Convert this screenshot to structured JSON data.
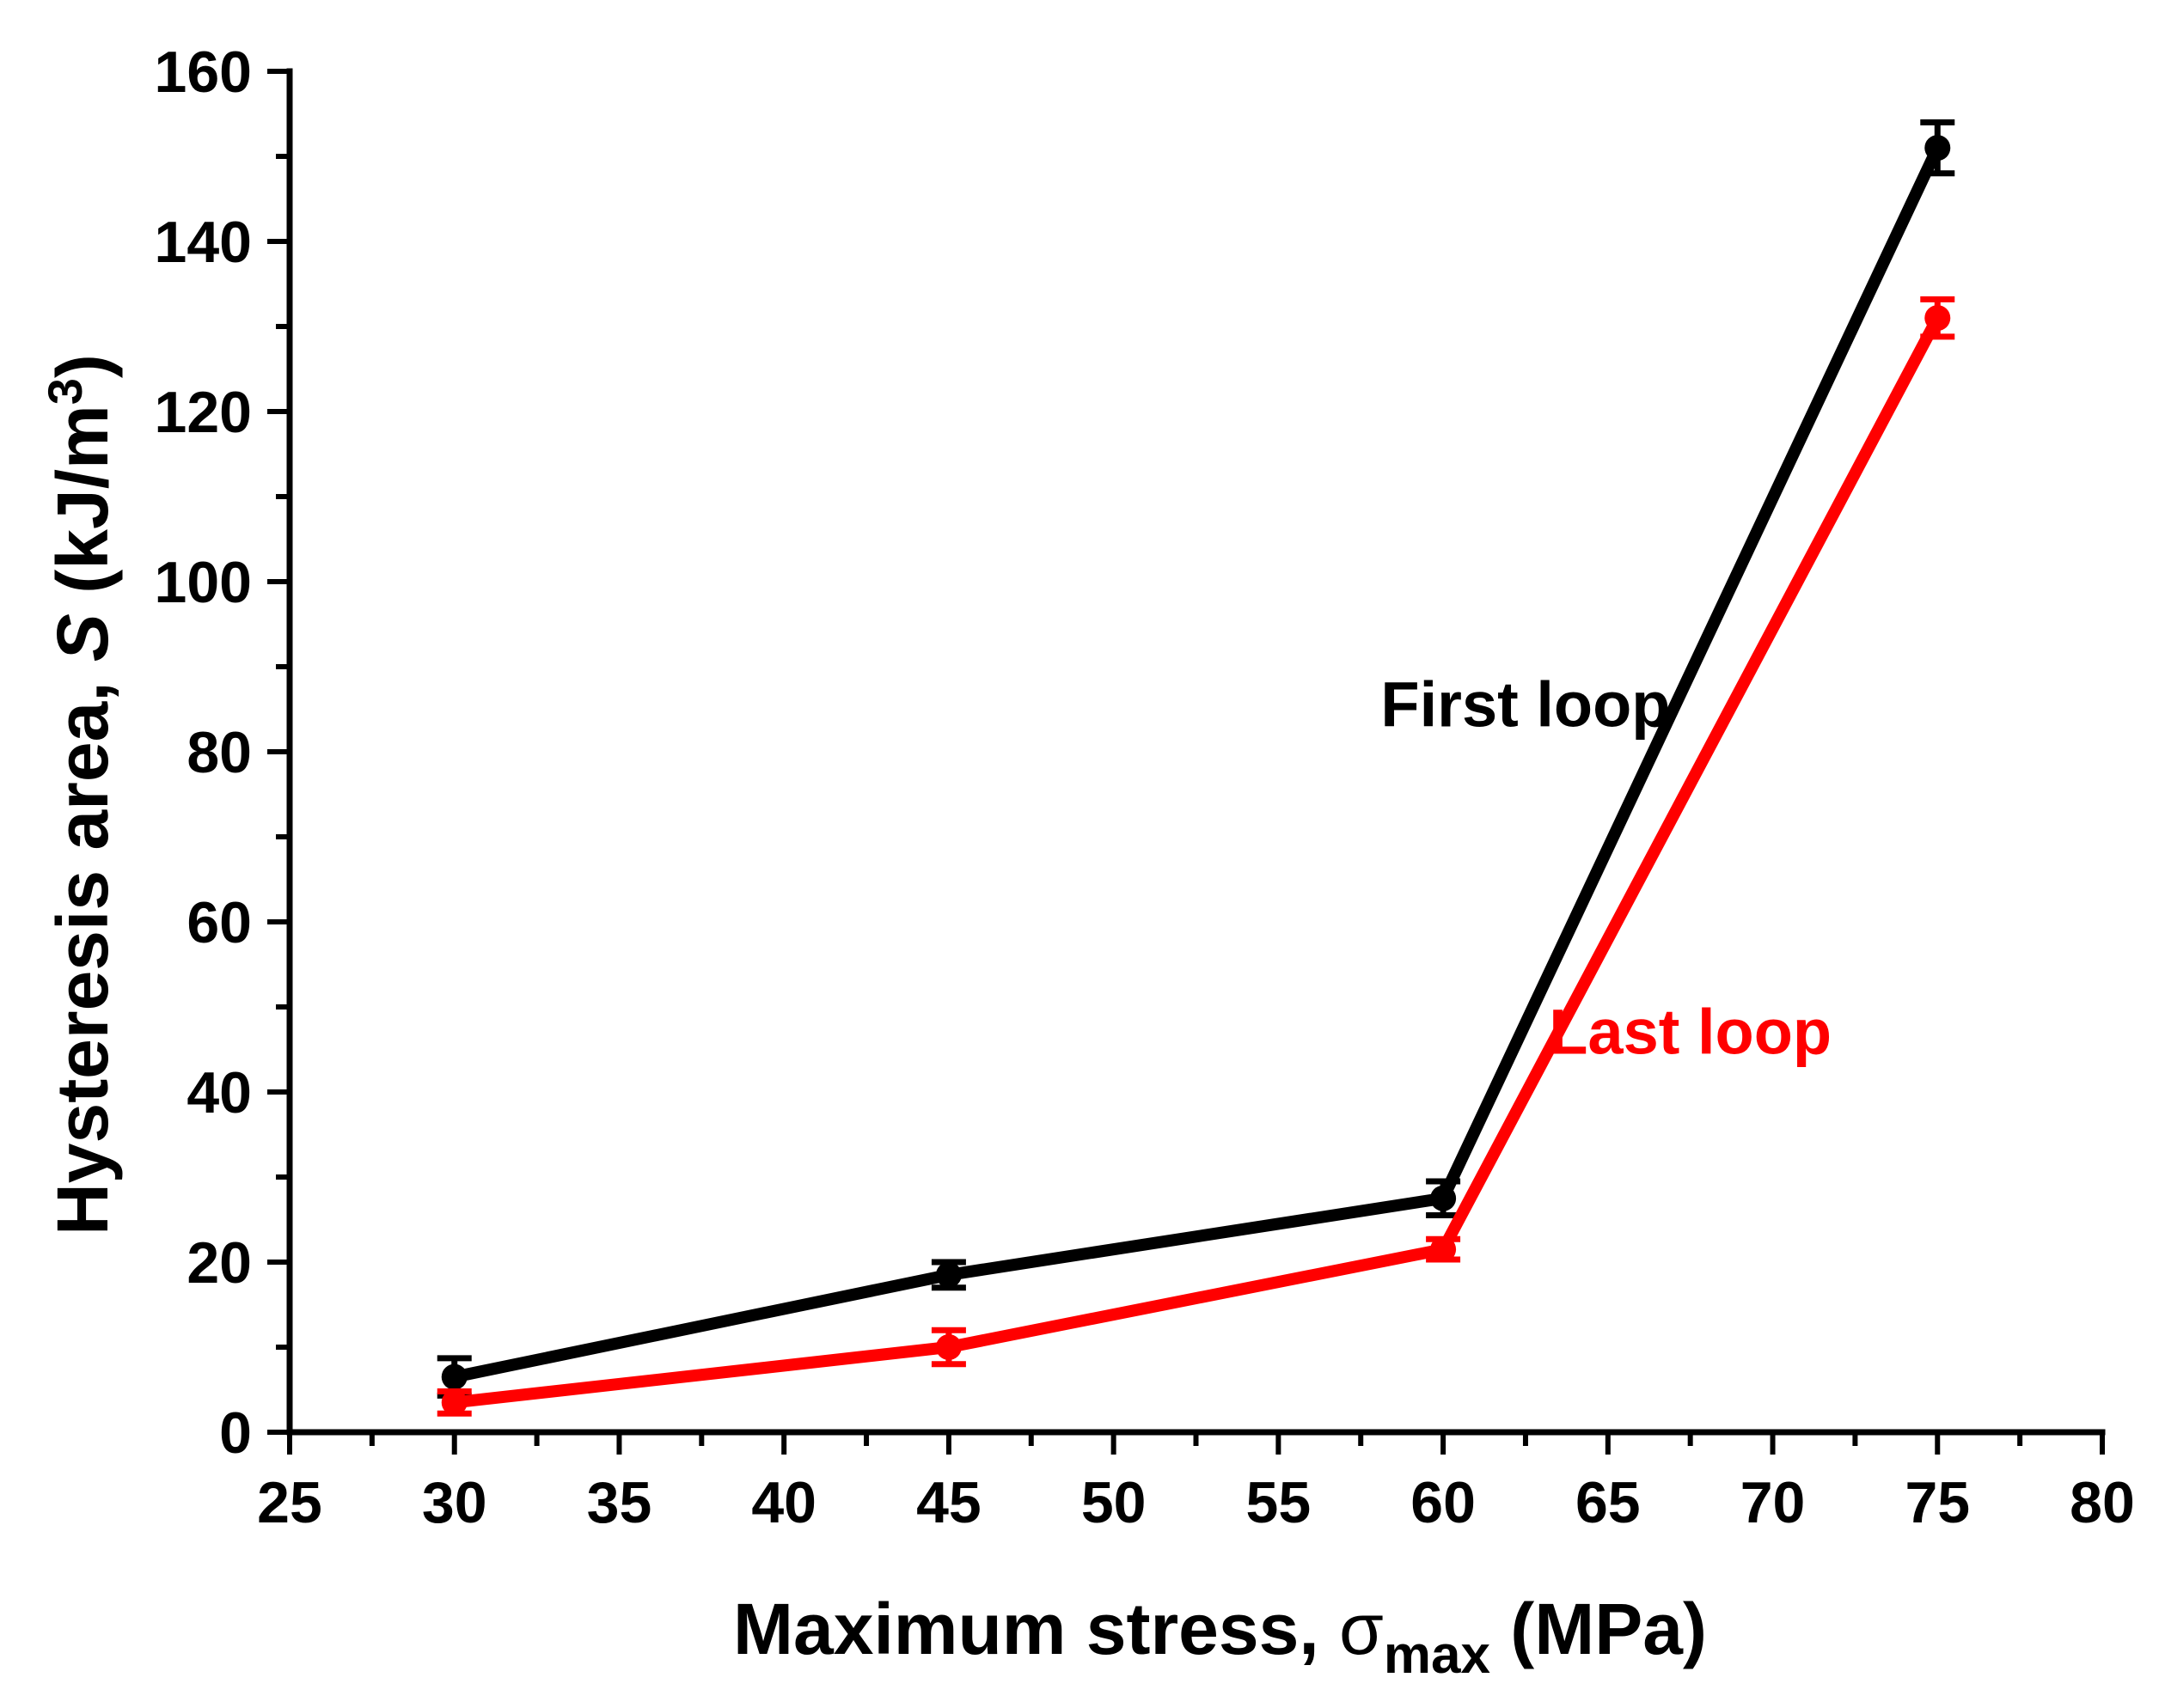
{
  "chart_data": {
    "type": "line",
    "title": "",
    "xlabel": {
      "main": "Maximum stress, ",
      "symbol": "σ",
      "subscript": "max",
      "unit": " (MPa)"
    },
    "ylabel": {
      "main": "Hysteresis area, ",
      "symbol": "S",
      "unit_prefix": " (kJ/m",
      "superscript": "3",
      "unit_suffix": ")"
    },
    "xlim": [
      25,
      80
    ],
    "ylim": [
      0,
      160
    ],
    "xticks": [
      25,
      30,
      35,
      40,
      45,
      50,
      55,
      60,
      65,
      70,
      75,
      80
    ],
    "yticks": [
      0,
      20,
      40,
      60,
      80,
      100,
      120,
      140,
      160
    ],
    "series": [
      {
        "name": "First loop",
        "color": "#000000",
        "x": [
          30,
          45,
          60,
          75
        ],
        "values": [
          6.5,
          18.5,
          27.5,
          151
        ],
        "errors": [
          2.2,
          1.5,
          2.0,
          3.0
        ]
      },
      {
        "name": "Last loop",
        "color": "#ff0000",
        "x": [
          30,
          45,
          60,
          75
        ],
        "values": [
          3.5,
          10,
          21.5,
          131
        ],
        "errors": [
          1.3,
          2.0,
          1.2,
          2.2
        ]
      }
    ],
    "annotations": [
      {
        "text": "First loop",
        "color": "#000000",
        "x": 62.5,
        "y": 83
      },
      {
        "text": "Last loop",
        "color": "#ff0000",
        "x": 67.5,
        "y": 44.5
      }
    ]
  }
}
